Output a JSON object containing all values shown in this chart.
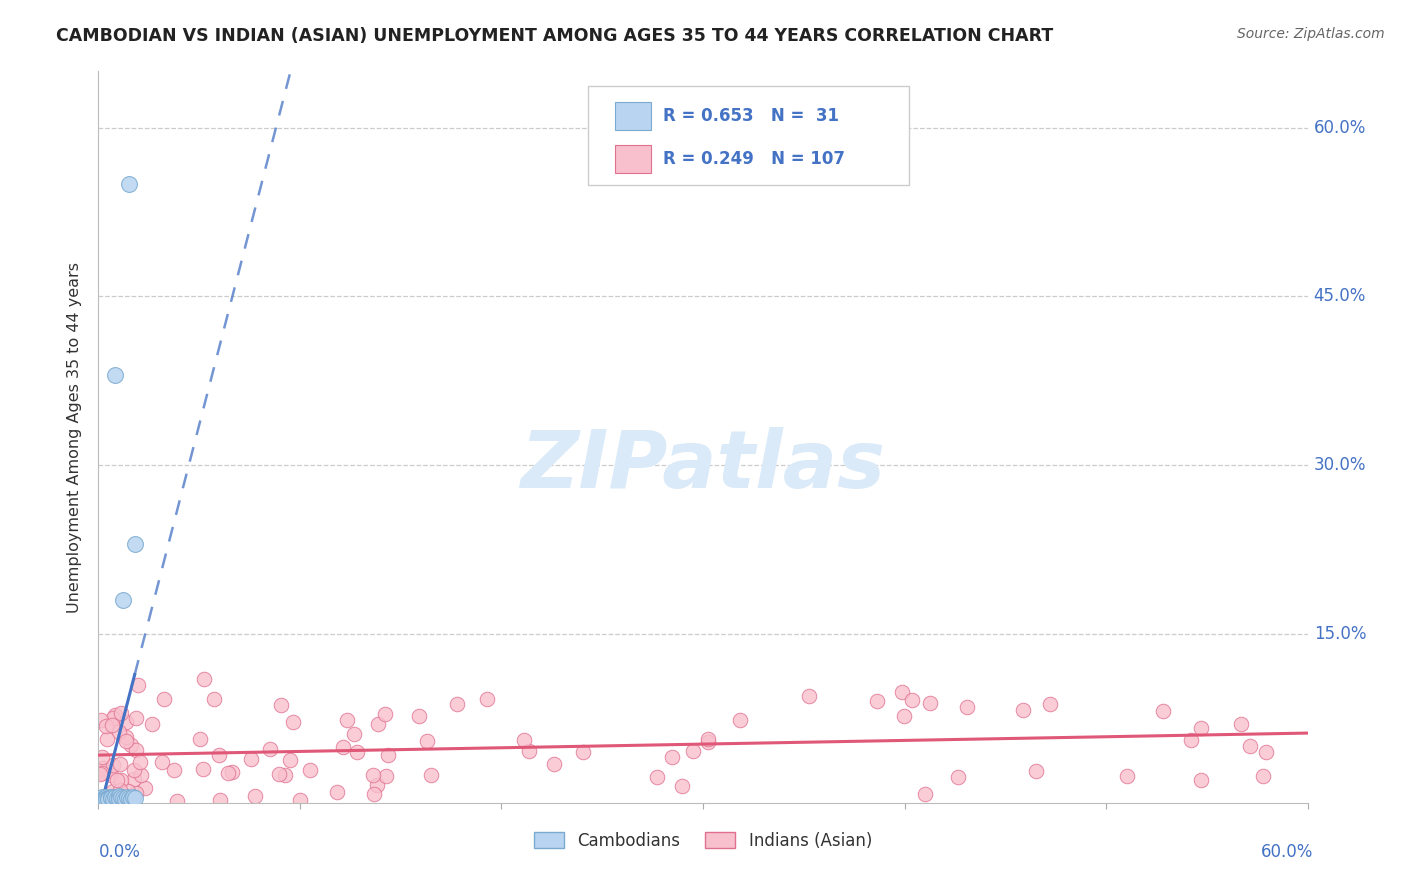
{
  "title": "CAMBODIAN VS INDIAN (ASIAN) UNEMPLOYMENT AMONG AGES 35 TO 44 YEARS CORRELATION CHART",
  "source": "Source: ZipAtlas.com",
  "ylabel": "Unemployment Among Ages 35 to 44 years",
  "ytick_labels": [
    "0.0%",
    "15.0%",
    "30.0%",
    "45.0%",
    "60.0%"
  ],
  "ytick_values": [
    0.0,
    0.15,
    0.3,
    0.45,
    0.6
  ],
  "xlim": [
    0.0,
    0.6
  ],
  "ylim": [
    0.0,
    0.65
  ],
  "cambodian_R": 0.653,
  "cambodian_N": 31,
  "indian_R": 0.249,
  "indian_N": 107,
  "cambodian_color": "#b8d4f0",
  "cambodian_edge": "#7aaad0",
  "cambodian_line_color": "#4472c4",
  "indian_color": "#f8c0cc",
  "indian_edge": "#e07090",
  "indian_line_color": "#e05878",
  "background_color": "#ffffff",
  "grid_color": "#cccccc",
  "watermark_color": "#daeaf8",
  "legend_R_color": "#4472c4",
  "legend_R2_color": "#e05878",
  "legend_text_color": "#333333"
}
